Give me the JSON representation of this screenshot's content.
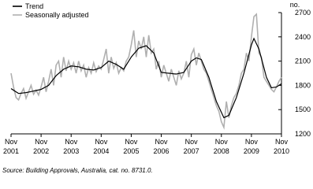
{
  "chart_data": {
    "type": "line",
    "y_label": "no.",
    "source": "Source: Building Approvals, Australia, cat. no. 8731.0.",
    "categories": [
      "Nov 2001",
      null,
      null,
      null,
      null,
      null,
      null,
      null,
      null,
      null,
      null,
      null,
      "Nov 2002",
      null,
      null,
      null,
      null,
      null,
      null,
      null,
      null,
      null,
      null,
      null,
      "Nov 2003",
      null,
      null,
      null,
      null,
      null,
      null,
      null,
      null,
      null,
      null,
      null,
      "Nov 2004",
      null,
      null,
      null,
      null,
      null,
      null,
      null,
      null,
      null,
      null,
      null,
      "Nov 2005",
      null,
      null,
      null,
      null,
      null,
      null,
      null,
      null,
      null,
      null,
      null,
      "Nov 2006",
      null,
      null,
      null,
      null,
      null,
      null,
      null,
      null,
      null,
      null,
      null,
      "Nov 2007",
      null,
      null,
      null,
      null,
      null,
      null,
      null,
      null,
      null,
      null,
      null,
      "Nov 2008",
      null,
      null,
      null,
      null,
      null,
      null,
      null,
      null,
      null,
      null,
      null,
      "Nov 2009",
      null,
      null,
      null,
      null,
      null,
      null,
      null,
      null,
      null,
      null,
      null,
      "Nov 2010"
    ],
    "series": [
      {
        "name": "Trend",
        "color": "#000000",
        "values": [
          1760,
          1740,
          1720,
          1700,
          1703,
          1707,
          1710,
          1717,
          1723,
          1730,
          1737,
          1743,
          1750,
          1767,
          1783,
          1800,
          1840,
          1880,
          1920,
          1947,
          1973,
          2000,
          2013,
          2027,
          2040,
          2037,
          2033,
          2030,
          2020,
          2010,
          2000,
          1997,
          1993,
          1990,
          2000,
          2010,
          2020,
          2047,
          2073,
          2100,
          2087,
          2073,
          2060,
          2040,
          2020,
          2000,
          2050,
          2100,
          2150,
          2187,
          2223,
          2260,
          2270,
          2280,
          2290,
          2260,
          2230,
          2200,
          2120,
          2040,
          1960,
          1957,
          1953,
          1950,
          1947,
          1943,
          1940,
          1947,
          1953,
          1960,
          2007,
          2053,
          2100,
          2120,
          2140,
          2130,
          2120,
          2047,
          1973,
          1900,
          1800,
          1700,
          1600,
          1533,
          1467,
          1400,
          1415,
          1430,
          1503,
          1577,
          1650,
          1750,
          1850,
          1950,
          2067,
          2183,
          2300,
          2380,
          2315,
          2250,
          2133,
          2017,
          1900,
          1835,
          1770,
          1775,
          1780,
          1800,
          1820
        ]
      },
      {
        "name": "Seasonally adjusted",
        "color": "#b0b0b0",
        "values": [
          1950,
          1780,
          1650,
          1620,
          1700,
          1760,
          1640,
          1720,
          1800,
          1690,
          1740,
          1680,
          1780,
          1900,
          1720,
          1850,
          2000,
          1800,
          2050,
          2100,
          1900,
          2150,
          1980,
          2100,
          2000,
          2080,
          1950,
          2100,
          1980,
          2050,
          1900,
          2020,
          1950,
          2080,
          1970,
          2040,
          2000,
          2120,
          2250,
          1950,
          2150,
          2010,
          2080,
          1950,
          2020,
          1980,
          2100,
          2150,
          2300,
          2480,
          2150,
          2350,
          2250,
          2400,
          2150,
          2420,
          2200,
          2250,
          2000,
          2100,
          1900,
          2050,
          1950,
          1850,
          2000,
          1900,
          1800,
          1980,
          1880,
          1950,
          2100,
          1900,
          2180,
          2250,
          2050,
          2200,
          2100,
          2000,
          1950,
          1850,
          1750,
          1650,
          1550,
          1480,
          1350,
          1280,
          1600,
          1400,
          1550,
          1650,
          1700,
          1800,
          1950,
          2000,
          2200,
          2100,
          2400,
          2650,
          2680,
          2200,
          2150,
          1900,
          1850,
          1800,
          1750,
          1720,
          1780,
          1850,
          1900
        ]
      }
    ],
    "ylim": [
      1200,
      2700
    ],
    "yticks": [
      1200,
      1500,
      1800,
      2100,
      2400,
      2700
    ],
    "legend": "top-left",
    "grid": false
  }
}
